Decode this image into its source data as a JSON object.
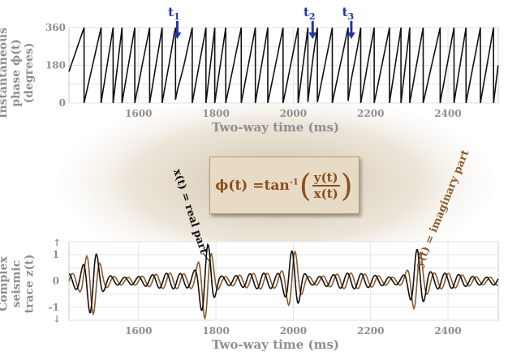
{
  "top_panel": {
    "ylabel": "Instantaneous phase ϕ(t) (degrees)",
    "ylabel_lines": [
      "Instantaneous",
      "phase ϕ(t)",
      "(degrees)"
    ],
    "xlabel": "Two-way time (ms)",
    "x_ticks": [
      "1600",
      "1800",
      "2000",
      "2200",
      "2400"
    ],
    "y_ticks": [
      "360",
      "180",
      "0"
    ],
    "markers": [
      {
        "label": "t",
        "sub": "1",
        "time": 1700
      },
      {
        "label": "t",
        "sub": "2",
        "time": 2050
      },
      {
        "label": "t",
        "sub": "3",
        "time": 2150
      }
    ]
  },
  "bottom_panel": {
    "ylabel": "Complex seismic trace z(t)",
    "ylabel_lines": [
      "Complex",
      "seismic",
      "trace z(t)"
    ],
    "xlabel": "Two-way time (ms)",
    "x_ticks": [
      "1600",
      "1800",
      "2000",
      "2200",
      "2400"
    ],
    "y_ticks": [
      "1",
      "0",
      "-1"
    ],
    "real_label": "x(t) = real part",
    "imag_label": "y(t) = imaginary part"
  },
  "formula": {
    "lhs": "ϕ(t) = ",
    "func": "tan",
    "exp": "-1",
    "numerator": "y(t)",
    "denominator": "x(t)"
  },
  "colors": {
    "real": "#111111",
    "imaginary": "#8b5a2b",
    "marker": "#2233aa",
    "axis_text": "#8e8e8e",
    "formula_text": "#8b4d1a"
  },
  "chart_data": [
    {
      "type": "line",
      "title": "",
      "xlabel": "Two-way time (ms)",
      "ylabel": "Instantaneous phase ϕ(t) (degrees)",
      "xlim": [
        1420,
        2530
      ],
      "ylim": [
        0,
        360
      ],
      "series": [
        {
          "name": "ϕ(t)",
          "values": "sawtooth phase 0–360 wrapping"
        }
      ]
    },
    {
      "type": "line",
      "title": "",
      "xlabel": "Two-way time (ms)",
      "ylabel": "Complex seismic trace z(t)",
      "xlim": [
        1420,
        2530
      ],
      "ylim": [
        -1.5,
        1.5
      ],
      "series": [
        {
          "name": "x(t) = real part",
          "peaks": [
            {
              "t": 1480,
              "a": 1.0
            },
            {
              "t": 1775,
              "a": 1.3
            },
            {
              "t": 2000,
              "a": 1.0
            },
            {
              "t": 2320,
              "a": 1.0
            }
          ]
        },
        {
          "name": "y(t) = imaginary part",
          "peaks": [
            {
              "t": 1480,
              "a": 1.0
            },
            {
              "t": 1775,
              "a": 1.3
            },
            {
              "t": 2000,
              "a": 1.0
            },
            {
              "t": 2320,
              "a": 1.0
            }
          ]
        }
      ]
    }
  ]
}
